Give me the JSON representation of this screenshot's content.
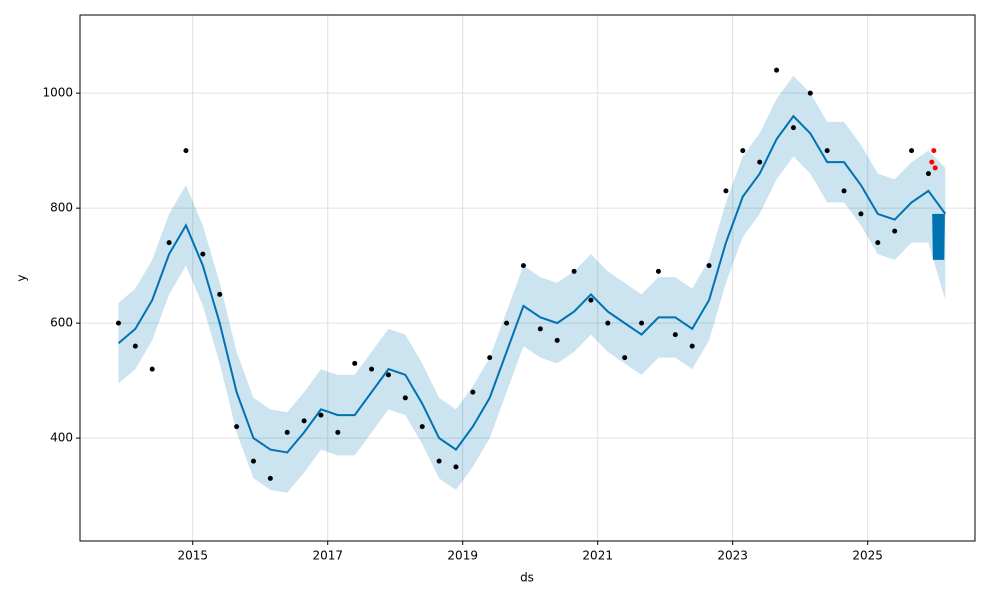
{
  "chart_data": {
    "type": "forecast",
    "xlabel": "ds",
    "ylabel": "y",
    "xlim": [
      2013.33,
      2026.59
    ],
    "ylim": [
      221,
      1136
    ],
    "xticks": [
      2015,
      2017,
      2019,
      2021,
      2023,
      2025
    ],
    "yticks": [
      400,
      600,
      800,
      1000
    ],
    "grid": true,
    "band": {
      "color": "#0072B2",
      "x": [
        2013.9,
        2014.15,
        2014.4,
        2014.65,
        2014.9,
        2015.15,
        2015.4,
        2015.65,
        2015.9,
        2016.15,
        2016.4,
        2016.65,
        2016.9,
        2017.15,
        2017.4,
        2017.65,
        2017.9,
        2018.15,
        2018.4,
        2018.65,
        2018.9,
        2019.15,
        2019.4,
        2019.65,
        2019.9,
        2020.15,
        2020.4,
        2020.65,
        2020.9,
        2021.15,
        2021.4,
        2021.65,
        2021.9,
        2022.15,
        2022.4,
        2022.65,
        2022.9,
        2023.15,
        2023.4,
        2023.65,
        2023.9,
        2024.15,
        2024.4,
        2024.65,
        2024.9,
        2025.15,
        2025.4,
        2025.65,
        2025.9,
        2026.15
      ],
      "lower": [
        495,
        520,
        570,
        650,
        700,
        630,
        530,
        410,
        330,
        310,
        305,
        340,
        380,
        370,
        370,
        410,
        450,
        440,
        390,
        330,
        310,
        350,
        400,
        480,
        560,
        540,
        530,
        550,
        580,
        550,
        530,
        510,
        540,
        540,
        520,
        570,
        670,
        750,
        790,
        850,
        890,
        860,
        810,
        810,
        770,
        720,
        710,
        740,
        740,
        640
      ],
      "upper": [
        635,
        660,
        710,
        790,
        840,
        770,
        670,
        550,
        470,
        450,
        445,
        480,
        520,
        510,
        510,
        550,
        590,
        580,
        530,
        470,
        450,
        490,
        540,
        620,
        700,
        680,
        670,
        690,
        720,
        690,
        670,
        650,
        680,
        680,
        660,
        710,
        810,
        890,
        930,
        990,
        1030,
        1000,
        950,
        950,
        910,
        860,
        850,
        880,
        900,
        870
      ]
    },
    "trend": {
      "color": "#0072B2",
      "x": [
        2013.9,
        2014.15,
        2014.4,
        2014.65,
        2014.9,
        2015.15,
        2015.4,
        2015.65,
        2015.9,
        2016.15,
        2016.4,
        2016.65,
        2016.9,
        2017.15,
        2017.4,
        2017.65,
        2017.9,
        2018.15,
        2018.4,
        2018.65,
        2018.9,
        2019.15,
        2019.4,
        2019.65,
        2019.9,
        2020.15,
        2020.4,
        2020.65,
        2020.9,
        2021.15,
        2021.4,
        2021.65,
        2021.9,
        2022.15,
        2022.4,
        2022.65,
        2022.9,
        2023.15,
        2023.4,
        2023.65,
        2023.9,
        2024.15,
        2024.4,
        2024.65,
        2024.9,
        2025.15,
        2025.4,
        2025.65,
        2025.9,
        2026.15
      ],
      "values": [
        565,
        590,
        640,
        720,
        770,
        700,
        600,
        480,
        400,
        380,
        375,
        410,
        450,
        440,
        440,
        480,
        520,
        510,
        460,
        400,
        380,
        420,
        470,
        550,
        630,
        610,
        600,
        620,
        650,
        620,
        600,
        580,
        610,
        610,
        590,
        640,
        740,
        820,
        860,
        920,
        960,
        930,
        880,
        880,
        840,
        790,
        780,
        810,
        830,
        790
      ]
    },
    "observed": {
      "color": "#000000",
      "x": [
        2013.9,
        2014.15,
        2014.4,
        2014.65,
        2014.9,
        2015.15,
        2015.4,
        2015.65,
        2015.9,
        2016.15,
        2016.4,
        2016.65,
        2016.9,
        2017.15,
        2017.4,
        2017.65,
        2017.9,
        2018.15,
        2018.4,
        2018.65,
        2018.9,
        2019.15,
        2019.4,
        2019.65,
        2019.9,
        2020.15,
        2020.4,
        2020.65,
        2020.9,
        2021.15,
        2021.4,
        2021.65,
        2021.9,
        2022.15,
        2022.4,
        2022.65,
        2022.9,
        2023.15,
        2023.4,
        2023.65,
        2023.9,
        2024.15,
        2024.4,
        2024.65,
        2024.9,
        2025.15,
        2025.4,
        2025.65,
        2025.9
      ],
      "values": [
        600,
        560,
        520,
        740,
        900,
        720,
        650,
        420,
        360,
        330,
        410,
        430,
        440,
        410,
        530,
        520,
        510,
        470,
        420,
        360,
        350,
        480,
        540,
        600,
        700,
        590,
        570,
        690,
        640,
        600,
        540,
        600,
        690,
        580,
        560,
        700,
        830,
        900,
        880,
        1040,
        940,
        1000,
        900,
        830,
        790,
        740,
        760,
        900,
        860
      ]
    },
    "recent": {
      "color": "#ff0000",
      "x": [
        2025.95,
        2025.98,
        2026.0
      ],
      "values": [
        880,
        900,
        870
      ]
    },
    "forecast": {
      "color": "#0072B2",
      "x": [
        2026.0,
        2026.01,
        2026.02,
        2026.03,
        2026.04,
        2026.05,
        2026.06,
        2026.07,
        2026.08,
        2026.09,
        2026.1
      ],
      "values": [
        790,
        710,
        790,
        710,
        790,
        710,
        790,
        710,
        790,
        710,
        790
      ]
    }
  }
}
